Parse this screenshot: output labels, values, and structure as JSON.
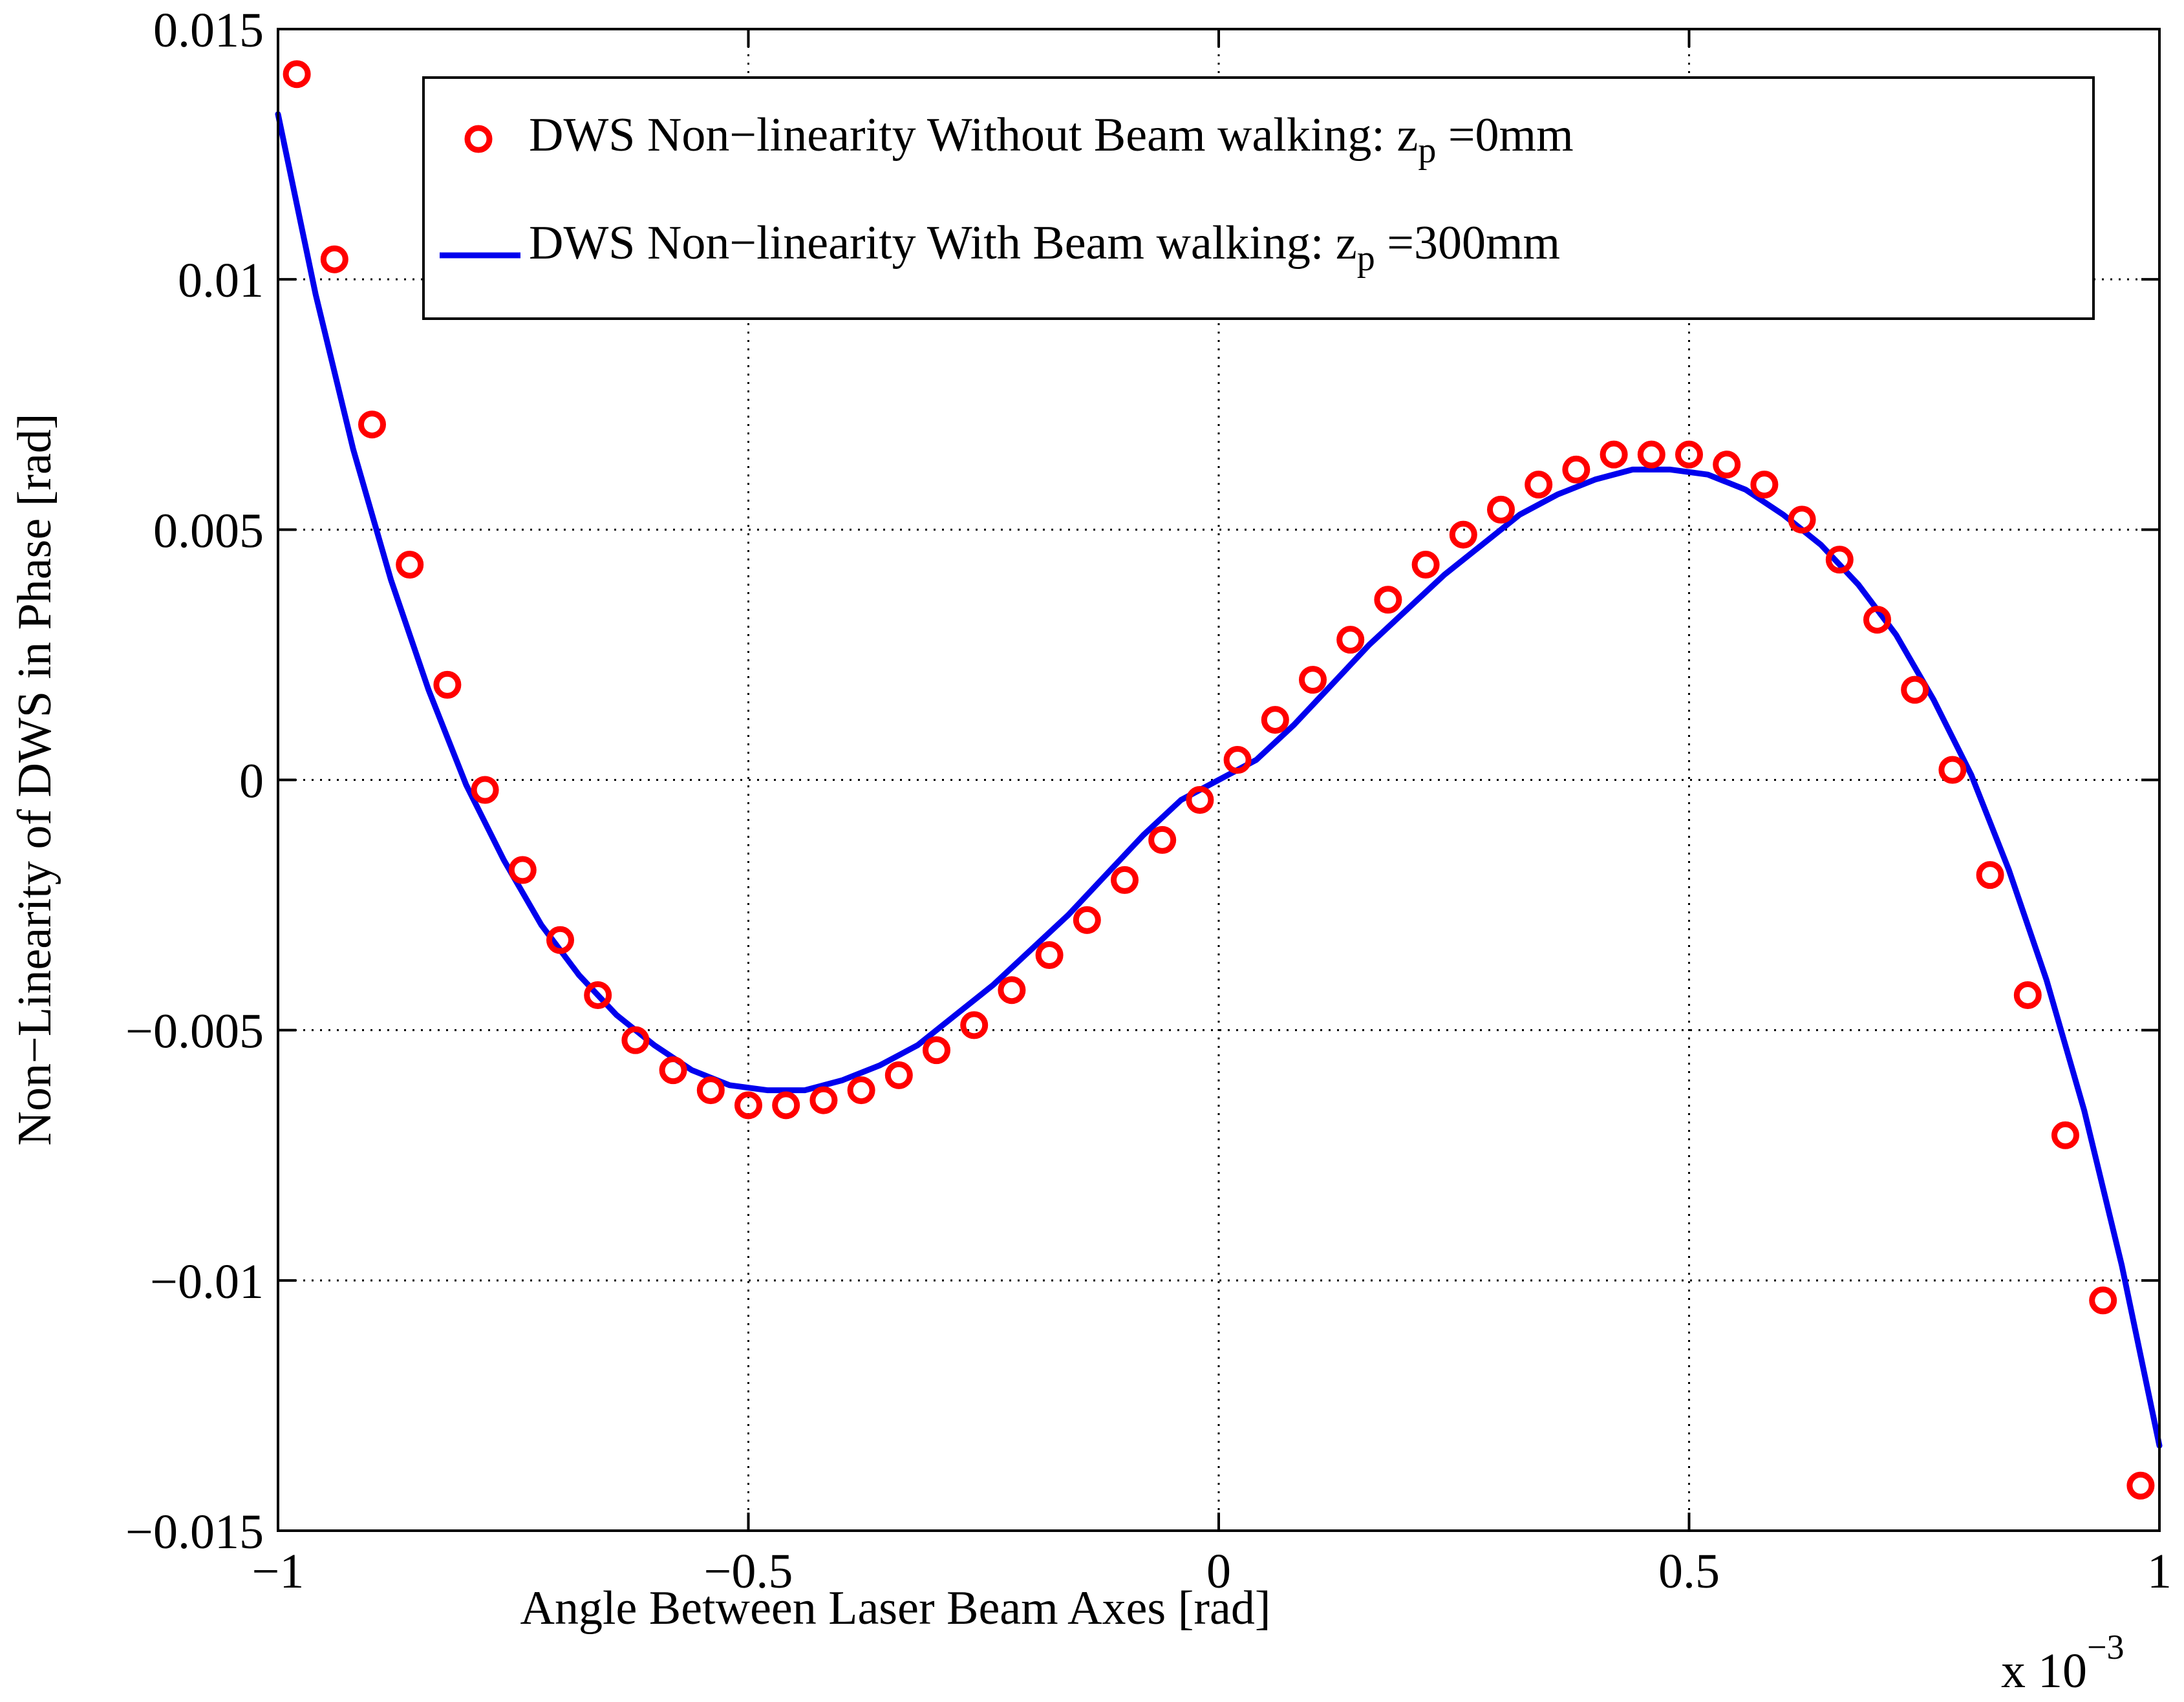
{
  "chart_data": {
    "type": "line",
    "title": "",
    "xlabel": "Angle Between Laser Beam Axes [rad]",
    "ylabel": "Non−Linearity of DWS in Phase [rad]",
    "x_multiplier_label": "x 10",
    "x_multiplier_exponent": "−3",
    "xlim": [
      -1,
      1
    ],
    "ylim": [
      -0.015,
      0.015
    ],
    "grid": true,
    "legend_position": "top-right",
    "x_ticks": [
      {
        "value": -1,
        "label": "−1"
      },
      {
        "value": -0.5,
        "label": "−0.5"
      },
      {
        "value": 0,
        "label": "0"
      },
      {
        "value": 0.5,
        "label": "0.5"
      },
      {
        "value": 1,
        "label": "1"
      }
    ],
    "y_ticks": [
      {
        "value": 0.015,
        "label": "0.015"
      },
      {
        "value": 0.01,
        "label": "0.01"
      },
      {
        "value": 0.005,
        "label": "0.005"
      },
      {
        "value": 0,
        "label": "0"
      },
      {
        "value": -0.005,
        "label": "−0.005"
      },
      {
        "value": -0.01,
        "label": "−0.01"
      },
      {
        "value": -0.015,
        "label": "−0.015"
      }
    ],
    "series": [
      {
        "name": "DWS Non−linearity Without Beam walking: z",
        "name_sub": "p",
        "name_suffix": " =0mm",
        "style": "markers",
        "marker": "circle",
        "color": "#ff0000",
        "x": [
          -0.98,
          -0.94,
          -0.9,
          -0.86,
          -0.82,
          -0.78,
          -0.74,
          -0.7,
          -0.66,
          -0.62,
          -0.58,
          -0.54,
          -0.5,
          -0.46,
          -0.42,
          -0.38,
          -0.34,
          -0.3,
          -0.26,
          -0.22,
          -0.18,
          -0.14,
          -0.1,
          -0.06,
          -0.02,
          0.02,
          0.06,
          0.1,
          0.14,
          0.18,
          0.22,
          0.26,
          0.3,
          0.34,
          0.38,
          0.42,
          0.46,
          0.5,
          0.54,
          0.58,
          0.62,
          0.66,
          0.7,
          0.74,
          0.78,
          0.82,
          0.86,
          0.9,
          0.94,
          0.98
        ],
        "y": [
          0.0141,
          0.0104,
          0.0071,
          0.0043,
          0.0019,
          -0.0002,
          -0.0018,
          -0.0032,
          -0.0043,
          -0.0052,
          -0.0058,
          -0.0062,
          -0.0065,
          -0.0065,
          -0.0064,
          -0.0062,
          -0.0059,
          -0.0054,
          -0.0049,
          -0.0042,
          -0.0035,
          -0.0028,
          -0.002,
          -0.0012,
          -0.0004,
          0.0004,
          0.0012,
          0.002,
          0.0028,
          0.0036,
          0.0043,
          0.0049,
          0.0054,
          0.0059,
          0.0062,
          0.0065,
          0.0065,
          0.0065,
          0.0063,
          0.0059,
          0.0052,
          0.0044,
          0.0032,
          0.0018,
          0.0002,
          -0.0019,
          -0.0043,
          -0.0071,
          -0.0104,
          -0.0141
        ]
      },
      {
        "name": "DWS Non−linearity With Beam walking: z",
        "name_sub": "p",
        "name_suffix": " =300mm",
        "style": "line",
        "color": "#0000ee",
        "x": [
          -1.0,
          -0.96,
          -0.92,
          -0.88,
          -0.84,
          -0.8,
          -0.76,
          -0.72,
          -0.68,
          -0.64,
          -0.6,
          -0.56,
          -0.52,
          -0.48,
          -0.44,
          -0.4,
          -0.36,
          -0.32,
          -0.28,
          -0.24,
          -0.2,
          -0.16,
          -0.12,
          -0.08,
          -0.04,
          0.0,
          0.04,
          0.08,
          0.12,
          0.16,
          0.2,
          0.24,
          0.28,
          0.32,
          0.36,
          0.4,
          0.44,
          0.48,
          0.52,
          0.56,
          0.6,
          0.64,
          0.68,
          0.72,
          0.76,
          0.8,
          0.84,
          0.88,
          0.92,
          0.96,
          1.0
        ],
        "y": [
          0.0133,
          0.0097,
          0.0066,
          0.004,
          0.0018,
          -0.0001,
          -0.0016,
          -0.0029,
          -0.0039,
          -0.0047,
          -0.0053,
          -0.0058,
          -0.0061,
          -0.0062,
          -0.0062,
          -0.006,
          -0.0057,
          -0.0053,
          -0.0047,
          -0.0041,
          -0.0034,
          -0.0027,
          -0.0019,
          -0.0011,
          -0.0004,
          0.0,
          0.0004,
          0.0011,
          0.0019,
          0.0027,
          0.0034,
          0.0041,
          0.0047,
          0.0053,
          0.0057,
          0.006,
          0.0062,
          0.0062,
          0.0061,
          0.0058,
          0.0053,
          0.0047,
          0.0039,
          0.0029,
          0.0016,
          0.0001,
          -0.0018,
          -0.004,
          -0.0066,
          -0.0097,
          -0.0133
        ]
      }
    ]
  }
}
